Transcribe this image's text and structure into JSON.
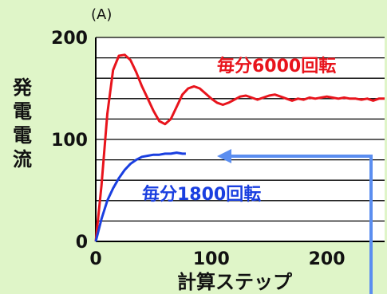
{
  "chart_data": {
    "type": "line",
    "unit_label": "(A)",
    "ylabel": "発電電流",
    "xlabel": "計算ステップ",
    "xlim": [
      0,
      250
    ],
    "ylim": [
      0,
      200
    ],
    "x_ticks": [
      "0",
      "100",
      "200"
    ],
    "y_ticks": [
      "0",
      "100",
      "200"
    ],
    "grid": "horizontal",
    "series": [
      {
        "name": "毎分6000回転",
        "color": "#e8141c",
        "points": [
          [
            0,
            0
          ],
          [
            5,
            55
          ],
          [
            10,
            125
          ],
          [
            15,
            168
          ],
          [
            20,
            182
          ],
          [
            25,
            183
          ],
          [
            30,
            178
          ],
          [
            35,
            166
          ],
          [
            40,
            152
          ],
          [
            45,
            140
          ],
          [
            50,
            128
          ],
          [
            55,
            118
          ],
          [
            60,
            115
          ],
          [
            65,
            120
          ],
          [
            70,
            132
          ],
          [
            75,
            144
          ],
          [
            80,
            150
          ],
          [
            85,
            152
          ],
          [
            90,
            150
          ],
          [
            95,
            145
          ],
          [
            100,
            140
          ],
          [
            105,
            136
          ],
          [
            110,
            134
          ],
          [
            115,
            136
          ],
          [
            120,
            139
          ],
          [
            125,
            142
          ],
          [
            130,
            143
          ],
          [
            135,
            141
          ],
          [
            140,
            139
          ],
          [
            145,
            141
          ],
          [
            150,
            143
          ],
          [
            155,
            144
          ],
          [
            160,
            142
          ],
          [
            165,
            140
          ],
          [
            170,
            138
          ],
          [
            175,
            140
          ],
          [
            180,
            139
          ],
          [
            185,
            141
          ],
          [
            190,
            140
          ],
          [
            195,
            141
          ],
          [
            200,
            142
          ],
          [
            205,
            141
          ],
          [
            210,
            140
          ],
          [
            215,
            141
          ],
          [
            220,
            140
          ],
          [
            225,
            140
          ],
          [
            230,
            139
          ],
          [
            235,
            140
          ],
          [
            240,
            138
          ],
          [
            245,
            140
          ],
          [
            250,
            140
          ]
        ]
      },
      {
        "name": "毎分1800回転",
        "color": "#1a3fe0",
        "points": [
          [
            0,
            0
          ],
          [
            5,
            22
          ],
          [
            10,
            40
          ],
          [
            15,
            52
          ],
          [
            20,
            62
          ],
          [
            25,
            70
          ],
          [
            30,
            76
          ],
          [
            35,
            80
          ],
          [
            40,
            83
          ],
          [
            45,
            84
          ],
          [
            50,
            85
          ],
          [
            55,
            85
          ],
          [
            60,
            86
          ],
          [
            65,
            86
          ],
          [
            70,
            87
          ],
          [
            75,
            86
          ],
          [
            78,
            86
          ]
        ]
      }
    ]
  },
  "colors": {
    "background": "#dff5c8",
    "plot_area": "#ffffff",
    "arrow": "#5b8ef0"
  }
}
